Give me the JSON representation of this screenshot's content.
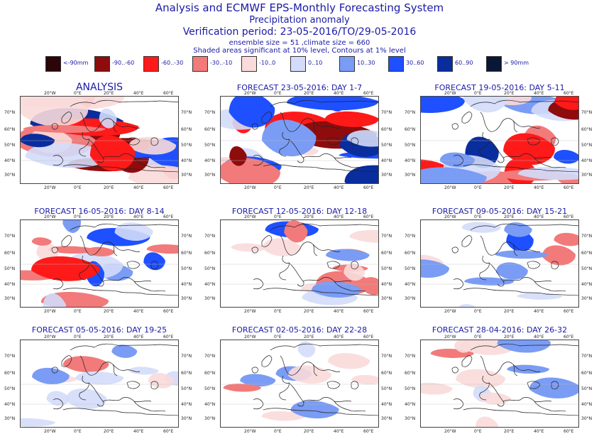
{
  "header": {
    "title": "Analysis and ECMWF EPS-Monthly Forecasting System",
    "subtitle": "Precipitation anomaly",
    "period": "Verification period: 23-05-2016/TO/29-05-2016",
    "ensemble": "ensemble size = 51  ,climate size = 660",
    "note": "Shaded areas significant at 10% level, Contours at 1% level"
  },
  "legend": [
    {
      "label": "<-90mm",
      "color": "#2b0508"
    },
    {
      "label": "-90..-60",
      "color": "#8f0c0c"
    },
    {
      "label": "-60..-30",
      "color": "#ff1a1a"
    },
    {
      "label": "-30..-10",
      "color": "#f27a7a"
    },
    {
      "label": "-10..0",
      "color": "#fadada"
    },
    {
      "label": "0..10",
      "color": "#d3dcfa"
    },
    {
      "label": "10..30",
      "color": "#7a9cf5"
    },
    {
      "label": "30..60",
      "color": "#1e50ff"
    },
    {
      "label": "60..90",
      "color": "#0a2d9e"
    },
    {
      "label": "> 90mm",
      "color": "#0a1636"
    }
  ],
  "axes": {
    "lon_top": [
      "20°W",
      "0°E",
      "20°E",
      "40°E",
      "60°E"
    ],
    "lon_bottom": [
      "20°W",
      "0°E",
      "20°E",
      "40°E",
      "60°E"
    ],
    "lat": [
      "70°N",
      "60°N",
      "50°N",
      "40°N",
      "30°N"
    ]
  },
  "panels": [
    {
      "title": "ANALYSIS",
      "big": true,
      "intensity": 1.0,
      "bias": 0.1,
      "seed": 1
    },
    {
      "title": "FORECAST 23-05-2016: DAY 1-7",
      "intensity": 0.95,
      "bias": 0.05,
      "seed": 2
    },
    {
      "title": "FORECAST 19-05-2016: DAY 5-11",
      "intensity": 0.75,
      "bias": 0.2,
      "seed": 3
    },
    {
      "title": "FORECAST 16-05-2016: DAY 8-14",
      "intensity": 0.55,
      "bias": 0.0,
      "seed": 4
    },
    {
      "title": "FORECAST 12-05-2016: DAY 12-18",
      "intensity": 0.45,
      "bias": 0.1,
      "seed": 5
    },
    {
      "title": "FORECAST 09-05-2016: DAY 15-21",
      "intensity": 0.35,
      "bias": -0.1,
      "seed": 6
    },
    {
      "title": "FORECAST 05-05-2016: DAY 19-25",
      "intensity": 0.25,
      "bias": -0.1,
      "seed": 7
    },
    {
      "title": "FORECAST 02-05-2016: DAY 22-28",
      "intensity": 0.18,
      "bias": -0.05,
      "seed": 8
    },
    {
      "title": "FORECAST 28-04-2016: DAY 26-32",
      "intensity": 0.3,
      "bias": 0.0,
      "seed": 9
    }
  ]
}
